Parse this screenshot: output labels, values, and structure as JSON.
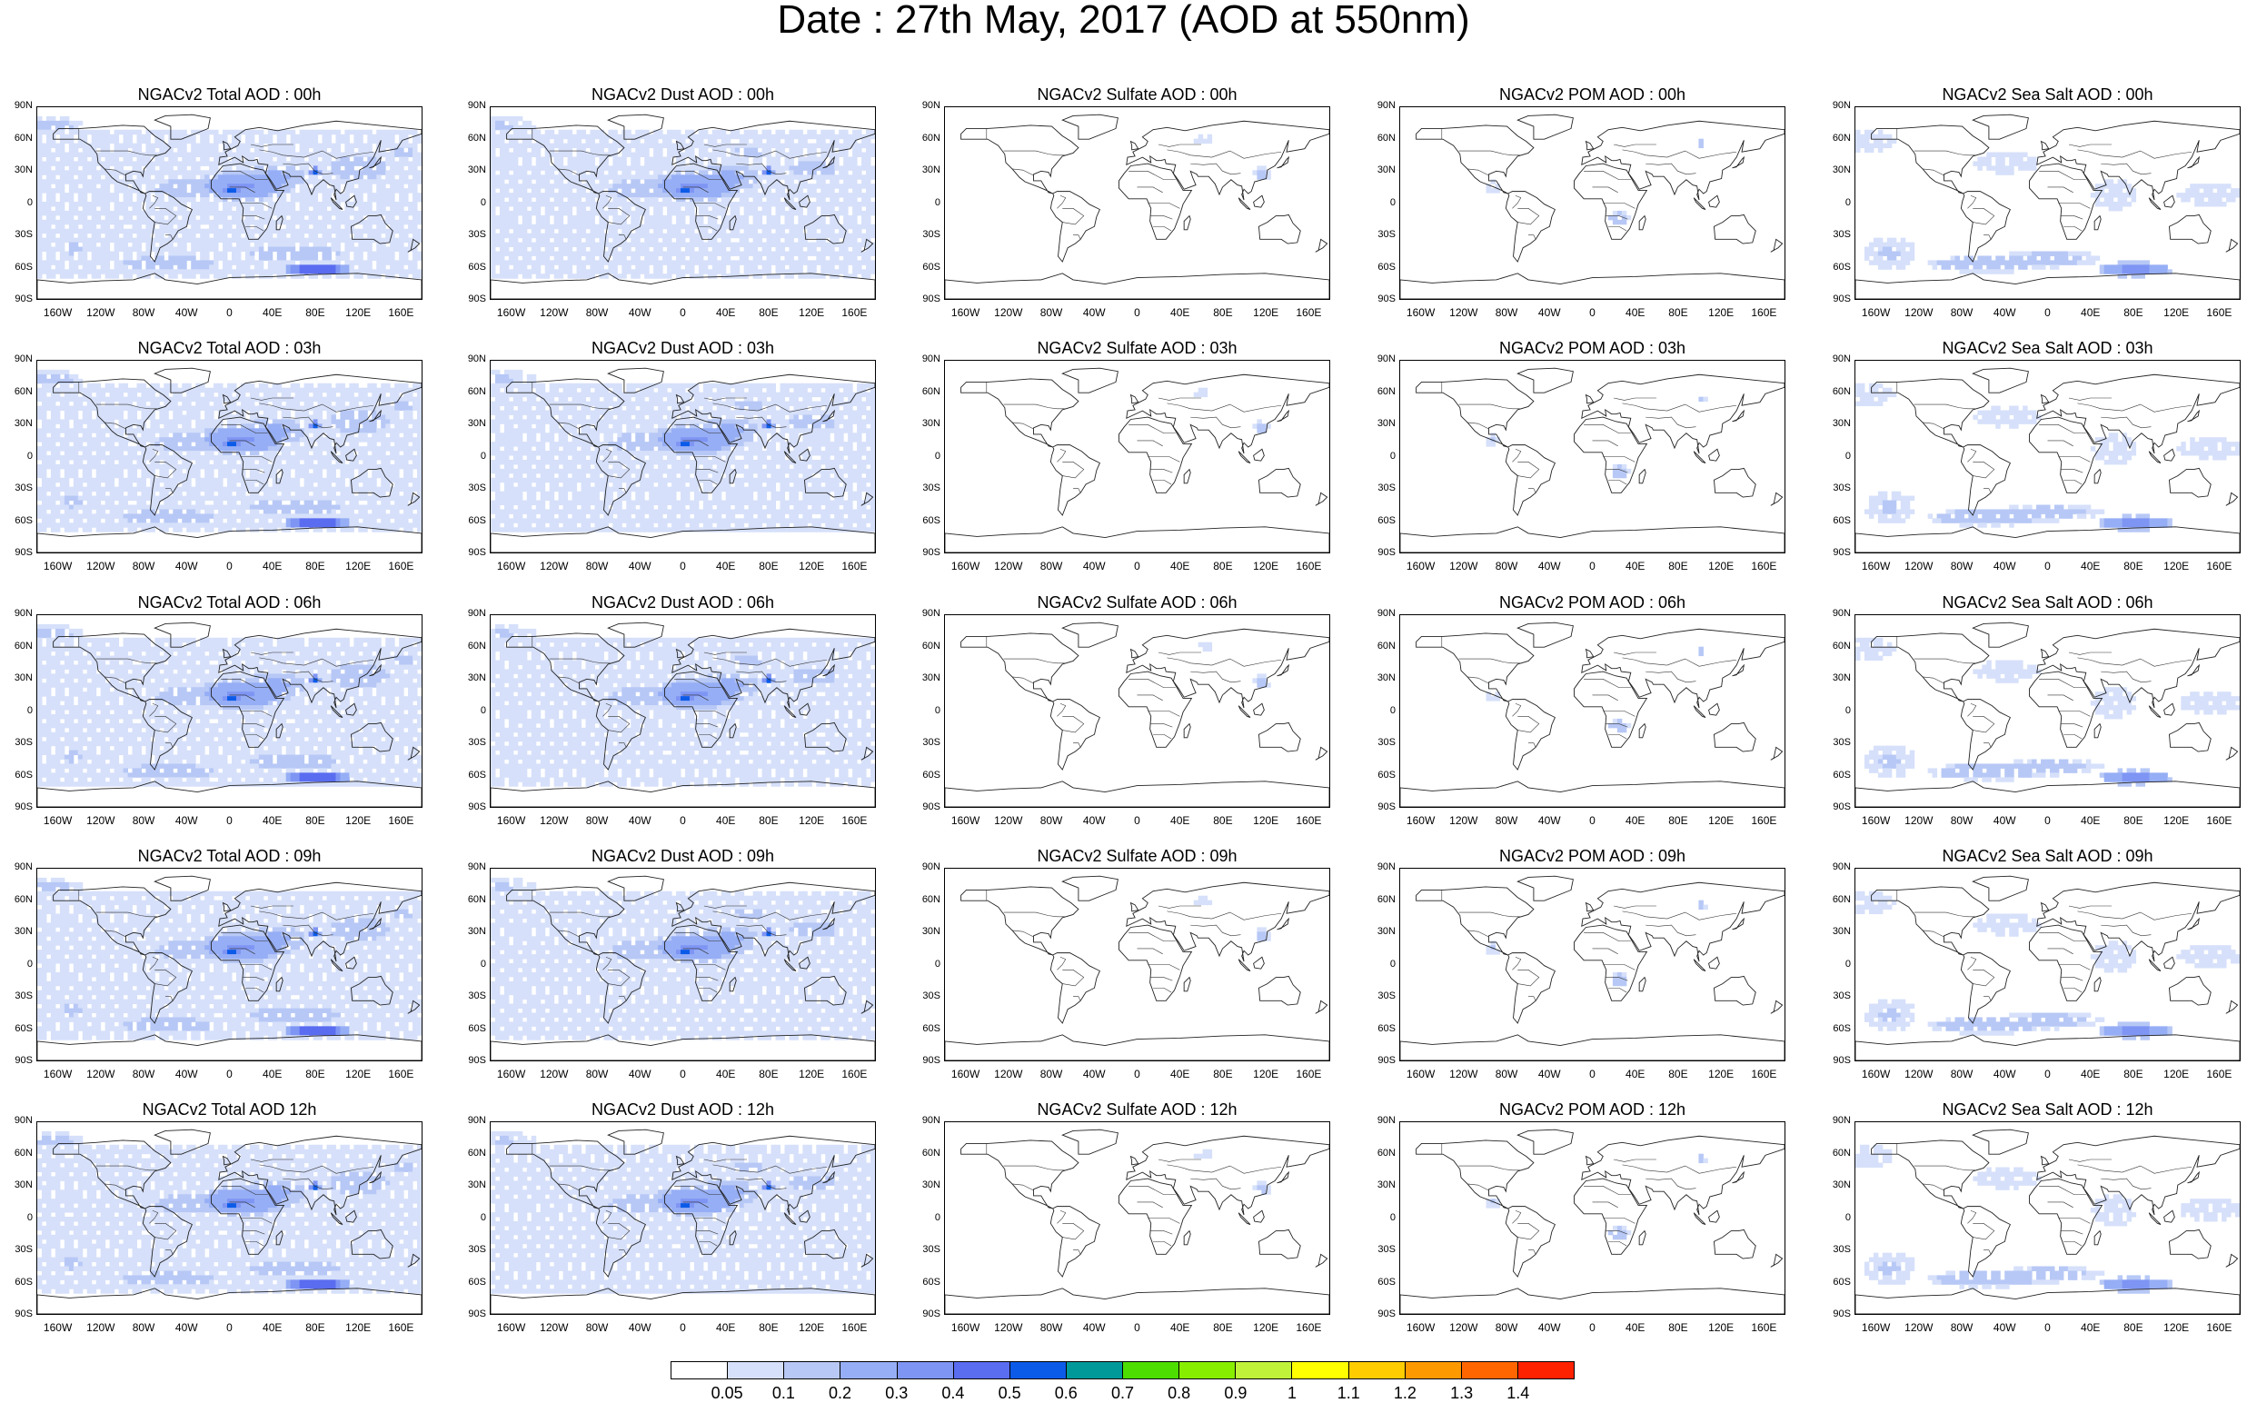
{
  "title": "Date : 27th May, 2017 (AOD at 550nm)",
  "columns": [
    {
      "species": "total",
      "titles": [
        "NGACv2 Total AOD : 00h",
        "NGACv2 Total AOD : 03h",
        "NGACv2 Total AOD : 06h",
        "NGACv2 Total AOD : 09h",
        "NGACv2 Total AOD  12h"
      ]
    },
    {
      "species": "dust",
      "titles": [
        "NGACv2 Dust AOD : 00h",
        "NGACv2 Dust AOD : 03h",
        "NGACv2 Dust AOD : 06h",
        "NGACv2 Dust AOD : 09h",
        "NGACv2 Dust AOD : 12h"
      ]
    },
    {
      "species": "sulfate",
      "titles": [
        "NGACv2 Sulfate AOD : 00h",
        "NGACv2 Sulfate AOD : 03h",
        "NGACv2 Sulfate AOD : 06h",
        "NGACv2 Sulfate AOD : 09h",
        "NGACv2 Sulfate AOD : 12h"
      ]
    },
    {
      "species": "pom",
      "titles": [
        "NGACv2 POM AOD : 00h",
        "NGACv2 POM AOD : 03h",
        "NGACv2 POM AOD : 06h",
        "NGACv2 POM AOD : 09h",
        "NGACv2 POM  AOD : 12h"
      ]
    },
    {
      "species": "seasalt",
      "titles": [
        "NGACv2 Sea Salt AOD : 00h",
        "NGACv2 Sea Salt AOD : 03h",
        "NGACv2 Sea Salt AOD : 06h",
        "NGACv2 Sea Salt  AOD : 09h",
        "NGACv2 Sea Salt AOD : 12h"
      ]
    }
  ],
  "lat_ticks": [
    "90N",
    "60N",
    "30N",
    "0",
    "30S",
    "60S",
    "90S"
  ],
  "lon_ticks": [
    "160W",
    "120W",
    "80W",
    "40W",
    "0",
    "40E",
    "80E",
    "120E",
    "160E"
  ],
  "colorbar": {
    "colors": [
      "#ffffff",
      "#d6e0fa",
      "#b7c8f6",
      "#96aef5",
      "#7f95f4",
      "#5a6cf0",
      "#0c5be8",
      "#009999",
      "#4ddd00",
      "#88ee00",
      "#c0f23a",
      "#ffff00",
      "#ffcc00",
      "#ff9900",
      "#ff6600",
      "#ff2200"
    ],
    "labels": [
      "0.05",
      "0.1",
      "0.2",
      "0.3",
      "0.4",
      "0.5",
      "0.6",
      "0.7",
      "0.8",
      "0.9",
      "1",
      "1.1",
      "1.2",
      "1.3",
      "1.4"
    ]
  }
}
